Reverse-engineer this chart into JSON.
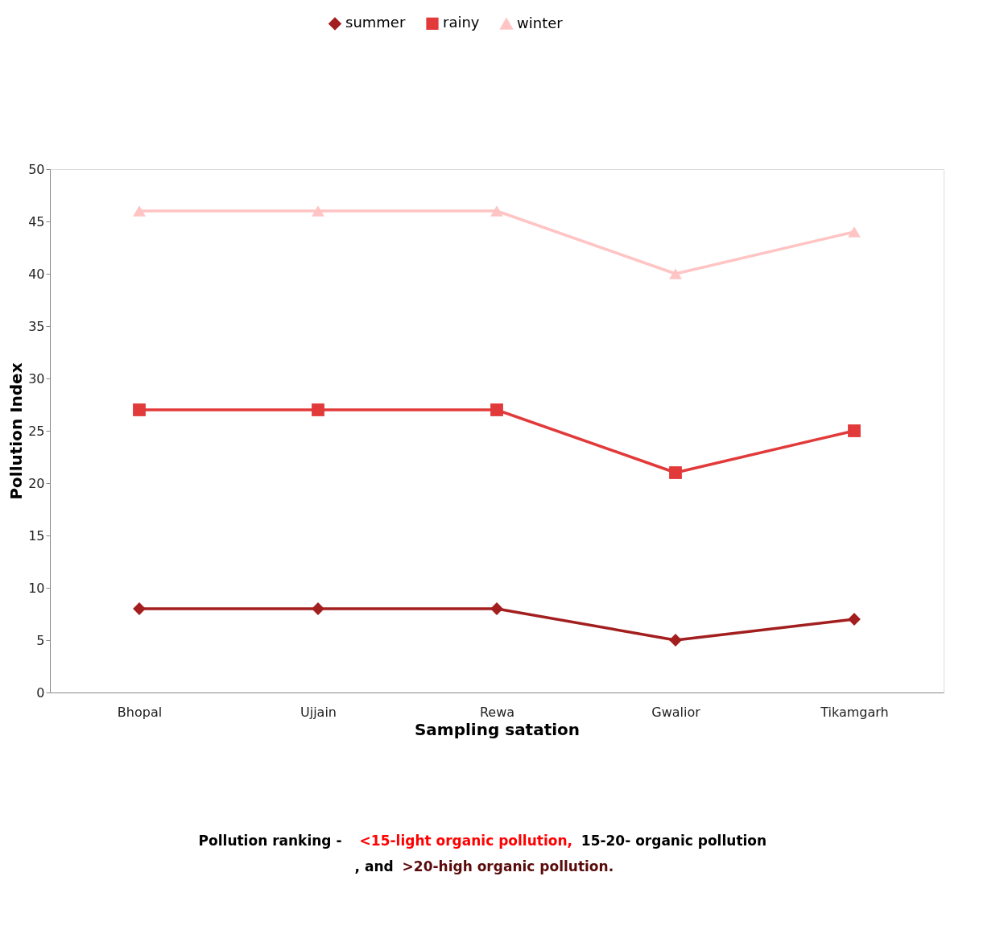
{
  "chart_data": {
    "type": "line",
    "xlabel": "Sampling satation",
    "ylabel": "Pollution Index",
    "categories": [
      "Bhopal",
      "Ujjain",
      "Rewa",
      "Gwalior",
      "Tikamgarh"
    ],
    "series": [
      {
        "name": "summer",
        "color": "#a31f1f",
        "marker": "diamond",
        "values": [
          8,
          8,
          8,
          5,
          7
        ]
      },
      {
        "name": "rainy",
        "color": "#e23a3a",
        "marker": "square",
        "values": [
          27,
          27,
          27,
          21,
          25
        ]
      },
      {
        "name": "winter",
        "color": "#ffc4c4",
        "marker": "triangle",
        "values": [
          46,
          46,
          46,
          40,
          44
        ]
      }
    ],
    "ylim": [
      0,
      50
    ],
    "yticks": [
      0,
      5,
      10,
      15,
      20,
      25,
      30,
      35,
      40,
      45,
      50
    ],
    "grid": false,
    "legend": "top",
    "line_style": "solid",
    "annotations": [
      "Pollution ranking - ",
      "<15-light organic pollution,",
      "15-20- organic pollution",
      ", and",
      ">20-high organic pollution."
    ]
  }
}
